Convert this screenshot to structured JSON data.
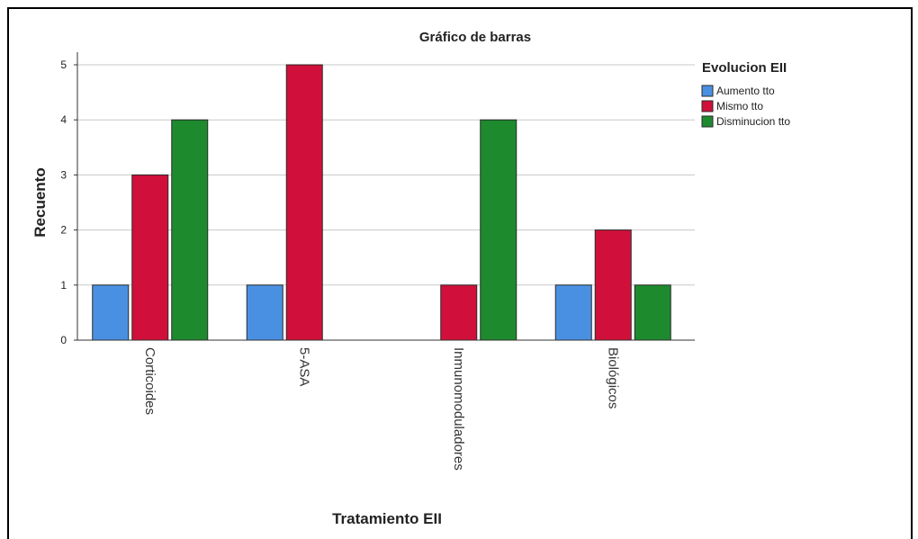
{
  "chart_data": {
    "type": "bar",
    "title": "Gráfico de barras",
    "xlabel": "Tratamiento EII",
    "ylabel": "Recuento",
    "categories": [
      "Corticoides",
      "5-ASA",
      "Inmunomoduladores",
      "Biológicos"
    ],
    "series": [
      {
        "name": "Aumento tto",
        "color": "#4a90e2",
        "values": [
          1,
          1,
          0,
          1
        ]
      },
      {
        "name": "Mismo tto",
        "color": "#d0103a",
        "values": [
          3,
          5,
          1,
          2
        ]
      },
      {
        "name": "Disminucion tto",
        "color": "#1e8a2e",
        "values": [
          4,
          0,
          4,
          1
        ]
      }
    ],
    "ylim": [
      0,
      5
    ],
    "yticks": [
      0,
      1,
      2,
      3,
      4,
      5
    ],
    "grid": true,
    "legend": {
      "title": "Evolucion EII",
      "placement": "top-right"
    }
  }
}
